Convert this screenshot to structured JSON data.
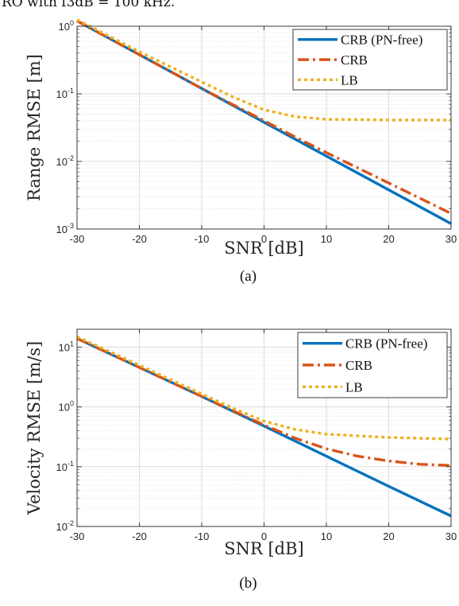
{
  "header_fragment": "RO with f3dB = 100 kHz.",
  "chart_data": [
    {
      "type": "line",
      "caption": "(a)",
      "xlabel": "SNR [dB]",
      "ylabel": "Range RMSE [m]",
      "xlim": [
        -30,
        30
      ],
      "ylim": [
        0.001,
        1
      ],
      "yscale": "log",
      "xticks": [
        -30,
        -20,
        -10,
        0,
        10,
        20,
        30
      ],
      "xtick_labels": [
        "-30",
        "-20",
        "-10",
        "0",
        "10",
        "20",
        "30"
      ],
      "yticks": [
        0.001,
        0.01,
        0.1,
        1
      ],
      "ytick_labels": [
        [
          "10",
          "-3"
        ],
        [
          "10",
          "-2"
        ],
        [
          "10",
          "-1"
        ],
        [
          "10",
          "0"
        ]
      ],
      "grid": true,
      "legend_position": "top-right",
      "series": [
        {
          "name": "CRB (PN-free)",
          "color": "#0072BD",
          "dash": "solid",
          "x": [
            -30,
            -20,
            -10,
            0,
            10,
            20,
            30
          ],
          "y": [
            1.2,
            0.38,
            0.12,
            0.038,
            0.012,
            0.0038,
            0.0012
          ]
        },
        {
          "name": "CRB",
          "color": "#D95319",
          "dash": "dashdot",
          "x": [
            -30,
            -20,
            -10,
            0,
            5,
            10,
            20,
            30
          ],
          "y": [
            1.2,
            0.38,
            0.12,
            0.04,
            0.023,
            0.0135,
            0.0048,
            0.0017
          ]
        },
        {
          "name": "LB",
          "color": "#EDB120",
          "dash": "dotted",
          "x": [
            -30,
            -20,
            -10,
            -5,
            0,
            5,
            10,
            20,
            30
          ],
          "y": [
            1.25,
            0.42,
            0.15,
            0.09,
            0.058,
            0.046,
            0.042,
            0.041,
            0.041
          ]
        }
      ]
    },
    {
      "type": "line",
      "caption": "(b)",
      "xlabel": "SNR [dB]",
      "ylabel": "Velocity RMSE [m/s]",
      "xlim": [
        -30,
        30
      ],
      "ylim": [
        0.01,
        20
      ],
      "yscale": "log",
      "xticks": [
        -30,
        -20,
        -10,
        0,
        10,
        20,
        30
      ],
      "xtick_labels": [
        "-30",
        "-20",
        "-10",
        "0",
        "10",
        "20",
        "30"
      ],
      "yticks": [
        0.01,
        0.1,
        1,
        10
      ],
      "ytick_labels": [
        [
          "10",
          "-2"
        ],
        [
          "10",
          "-1"
        ],
        [
          "10",
          "0"
        ],
        [
          "10",
          "1"
        ]
      ],
      "grid": true,
      "legend_position": "top-right",
      "series": [
        {
          "name": "CRB (PN-free)",
          "color": "#0072BD",
          "dash": "solid",
          "x": [
            -30,
            -20,
            -10,
            0,
            10,
            20,
            30
          ],
          "y": [
            14,
            4.6,
            1.5,
            0.48,
            0.15,
            0.047,
            0.015
          ]
        },
        {
          "name": "CRB",
          "color": "#D95319",
          "dash": "dashdot",
          "x": [
            -30,
            -20,
            -10,
            0,
            5,
            10,
            15,
            20,
            25,
            30
          ],
          "y": [
            14,
            4.6,
            1.5,
            0.5,
            0.3,
            0.2,
            0.15,
            0.125,
            0.11,
            0.105
          ]
        },
        {
          "name": "LB",
          "color": "#EDB120",
          "dash": "dotted",
          "x": [
            -30,
            -20,
            -10,
            -5,
            0,
            5,
            10,
            20,
            30
          ],
          "y": [
            15,
            5,
            1.65,
            0.95,
            0.58,
            0.42,
            0.35,
            0.31,
            0.29
          ]
        }
      ]
    }
  ]
}
